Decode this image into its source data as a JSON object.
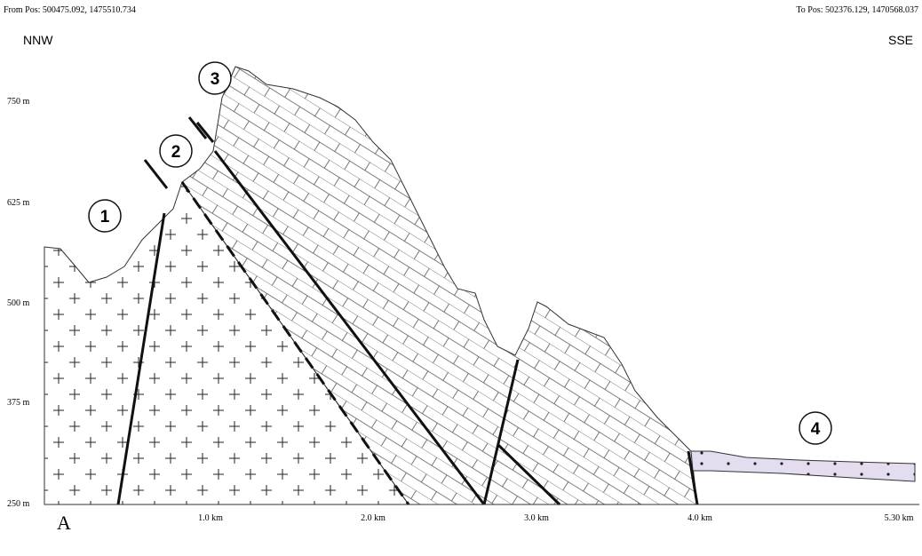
{
  "header": {
    "from_pos": "From Pos: 500475.092, 1475510.734",
    "to_pos": "To Pos: 502376.129, 1470568.037",
    "left_direction": "NNW",
    "right_direction": "SSE"
  },
  "elevation_labels": [
    "750 m",
    "625 m",
    "500 m",
    "375 m",
    "250 m"
  ],
  "distance_labels": [
    "1.0 km",
    "2.0 km",
    "3.0 km",
    "4.0 km",
    "5.30 km"
  ],
  "callouts": [
    "1",
    "2",
    "3",
    "4"
  ],
  "panel_label": "A"
}
